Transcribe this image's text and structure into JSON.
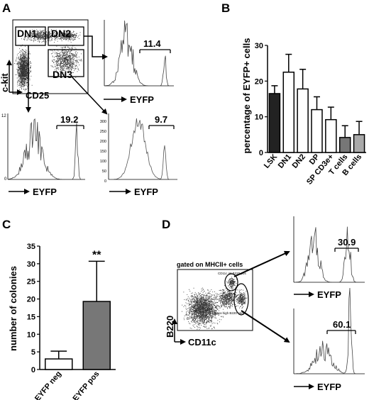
{
  "panels": {
    "A": {
      "letter": "A",
      "gates": [
        "DN1",
        "DN2",
        "DN3"
      ],
      "y_axis": "c-kit",
      "x_axis": "CD25",
      "hist_x_label": "EYFP",
      "dn2_percent": "11.4",
      "dn1_percent": "19.2",
      "dn3_percent": "9.7",
      "dn1_ticks": [
        "12",
        "0"
      ],
      "dn3_ticks": [
        "300",
        "250",
        "200",
        "150",
        "100",
        "50",
        "0"
      ]
    },
    "B": {
      "letter": "B"
    },
    "C": {
      "letter": "C"
    },
    "D": {
      "letter": "D",
      "gate_title": "gated on MHCII+ cells",
      "gate1_label": "CD11c int B220 pos",
      "gate2_label": "CD11c high B220 neg",
      "y_axis": "B220",
      "x_axis": "CD11c",
      "hist_x_label": "EYFP",
      "top_percent": "30.9",
      "bottom_percent": "60.1"
    }
  },
  "chart_data": [
    {
      "type": "bar",
      "panel": "B",
      "ylabel": "percentage of EYFP+ cells",
      "categories": [
        "LSK",
        "DN1",
        "DN2",
        "DP",
        "SP CD3e+",
        "T cells",
        "B cells"
      ],
      "values": [
        16.5,
        22.5,
        17.8,
        12,
        9.2,
        4.2,
        5
      ],
      "errors": [
        2.2,
        5,
        5.5,
        3.6,
        3.5,
        3.3,
        3.7
      ],
      "fill_colors": [
        "#222222",
        "#ffffff",
        "#ffffff",
        "#ffffff",
        "#ffffff",
        "#777777",
        "#aaaaaa"
      ],
      "yticks": [
        0,
        10,
        20,
        30
      ],
      "ylim": [
        0,
        30
      ]
    },
    {
      "type": "bar",
      "panel": "C",
      "ylabel": "number of colonies",
      "categories": [
        "EYFP neg",
        "EYFP pos"
      ],
      "values": [
        3,
        19.3
      ],
      "errors": [
        2.2,
        11.4
      ],
      "fill_colors": [
        "#ffffff",
        "#777777"
      ],
      "annotations": [
        "",
        "**"
      ],
      "yticks": [
        0,
        5,
        10,
        15,
        20,
        25,
        30,
        35
      ],
      "ylim": [
        0,
        35
      ]
    }
  ]
}
